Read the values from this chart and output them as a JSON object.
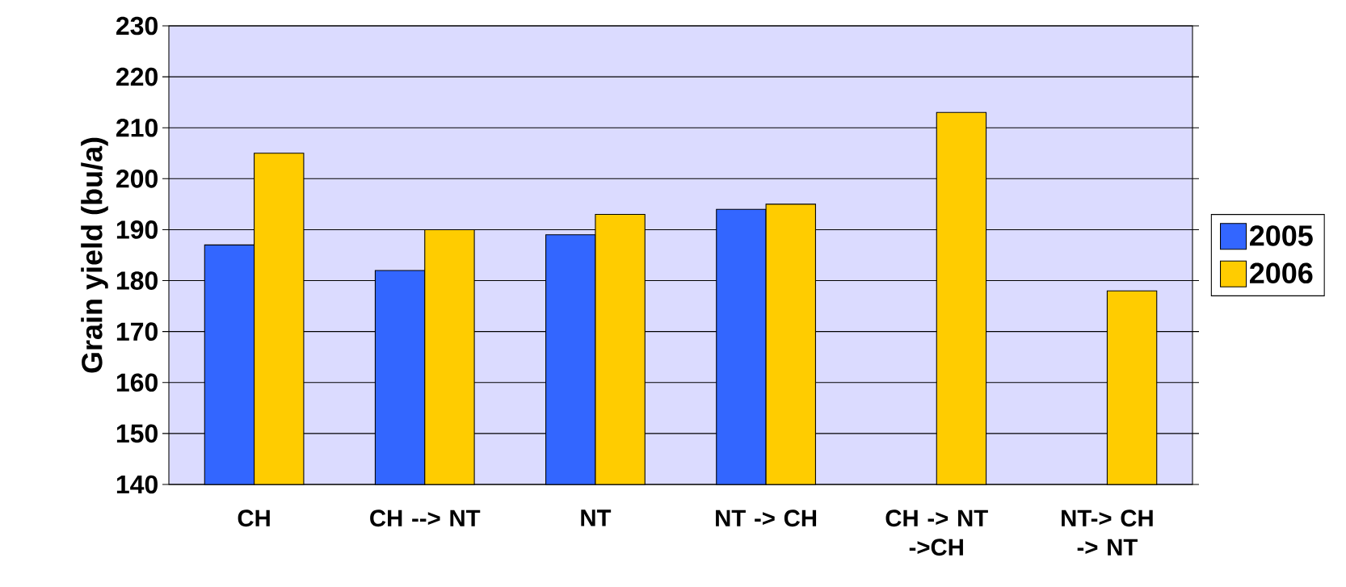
{
  "chart_data": {
    "type": "bar",
    "ylabel": "Grain yield (bu/a)",
    "categories": [
      "CH",
      "CH --> NT",
      "NT",
      "NT -> CH",
      "CH -> NT ->CH",
      "NT-> CH -> NT"
    ],
    "series": [
      {
        "name": "2005",
        "color": "#3366ff",
        "values": [
          187,
          182,
          189,
          194,
          null,
          null
        ]
      },
      {
        "name": "2006",
        "color": "#ffcc00",
        "values": [
          205,
          190,
          193,
          195,
          213,
          178
        ]
      }
    ],
    "ylim": [
      140,
      230
    ],
    "yticks": [
      140,
      150,
      160,
      170,
      180,
      190,
      200,
      210,
      220,
      230
    ],
    "grid": "y",
    "legend": "right"
  }
}
